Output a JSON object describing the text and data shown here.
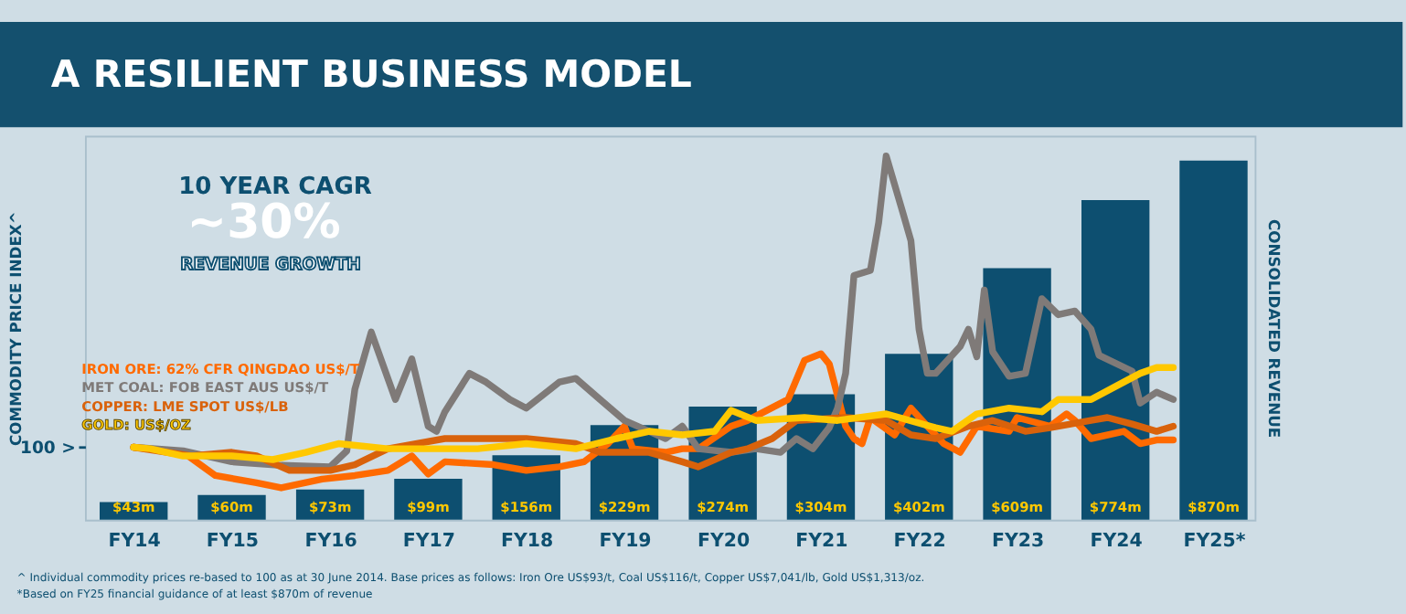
{
  "chart_data": {
    "type": "line",
    "title": "A RESILIENT BUSINESS MODEL",
    "ylabel": "COMMODITY PRICE INDEX^",
    "y2label": "CONSOLIDATED REVENUE",
    "xticks": [
      {
        "value": "2014-07",
        "label": "FY14"
      },
      {
        "value": "2015-07",
        "label": "FY15"
      },
      {
        "value": "2016-07",
        "label": "FY16"
      },
      {
        "value": "2017-07",
        "label": "FY17"
      },
      {
        "value": "2018-07",
        "label": "FY18"
      },
      {
        "value": "2019-07",
        "label": "FY19"
      },
      {
        "value": "2020-07",
        "label": "FY20"
      },
      {
        "value": "2021-07",
        "label": "FY21"
      },
      {
        "value": "2022-07",
        "label": "FY22"
      },
      {
        "value": "2023-07",
        "label": "FY23"
      },
      {
        "value": "2024-07",
        "label": "FY24"
      },
      {
        "value": "2025-07",
        "label": "FY25*"
      }
    ],
    "xlim": [
      "2014-01",
      "2025-12"
    ],
    "ylim": [
      0,
      530
    ],
    "yticks": [
      {
        "value": 100,
        "label": "100 >"
      }
    ],
    "y2lim": [
      0,
      930
    ],
    "legend": "left",
    "series": [
      {
        "type": "bar",
        "axis": "y2",
        "color": "#0d4f70",
        "x": [
          "2014-07",
          "2015-07",
          "2016-07",
          "2017-07",
          "2018-07",
          "2019-07",
          "2020-07",
          "2021-07",
          "2022-07",
          "2023-07",
          "2024-07",
          "2025-07"
        ],
        "values": [
          43,
          60,
          73,
          99,
          156,
          229,
          274,
          304,
          402,
          609,
          774,
          870
        ],
        "value_labels": [
          "$43m",
          "$60m",
          "$73m",
          "$99m",
          "$156m",
          "$229m",
          "$274m",
          "$304m",
          "$402m",
          "$609m",
          "$774m",
          "$870m"
        ]
      },
      {
        "name": "IRON ORE: 62% CFR QINGDAO US$/T",
        "color": "#ff6a00",
        "x": [
          "2014-07",
          "2015-01",
          "2015-05",
          "2015-10",
          "2016-01",
          "2016-06",
          "2016-10",
          "2017-02",
          "2017-05",
          "2017-07",
          "2017-09",
          "2018-03",
          "2018-07",
          "2018-11",
          "2019-02",
          "2019-05",
          "2019-07",
          "2019-08",
          "2019-12",
          "2020-02",
          "2020-04",
          "2020-08",
          "2020-10",
          "2021-03",
          "2021-05",
          "2021-07",
          "2021-08",
          "2021-10",
          "2021-11",
          "2021-12",
          "2022-01",
          "2022-04",
          "2022-06",
          "2022-08",
          "2022-10",
          "2022-12",
          "2023-02",
          "2023-06",
          "2023-07",
          "2023-11",
          "2024-01",
          "2024-02",
          "2024-04",
          "2024-08",
          "2024-10",
          "2024-12",
          "2025-02"
        ],
        "values": [
          100,
          93,
          61,
          51,
          44,
          56,
          61,
          68,
          88,
          63,
          80,
          76,
          68,
          73,
          80,
          105,
          129,
          98,
          93,
          98,
          98,
          129,
          137,
          166,
          220,
          229,
          215,
          129,
          112,
          105,
          141,
          117,
          154,
          129,
          105,
          93,
          129,
          122,
          141,
          129,
          146,
          137,
          112,
          122,
          105,
          110,
          110
        ]
      },
      {
        "name": "MET COAL: FOB EAST AUS US$/T",
        "color": "#7f7a78",
        "x": [
          "2014-07",
          "2015-01",
          "2015-07",
          "2016-01",
          "2016-07",
          "2016-09",
          "2016-10",
          "2016-12",
          "2017-03",
          "2017-05",
          "2017-07",
          "2017-08",
          "2017-09",
          "2017-12",
          "2018-02",
          "2018-05",
          "2018-07",
          "2018-11",
          "2019-01",
          "2019-04",
          "2019-07",
          "2019-10",
          "2019-12",
          "2020-02",
          "2020-04",
          "2020-08",
          "2020-11",
          "2021-02",
          "2021-04",
          "2021-06",
          "2021-08",
          "2021-09",
          "2021-10",
          "2021-11",
          "2022-01",
          "2022-02",
          "2022-03",
          "2022-05",
          "2022-06",
          "2022-07",
          "2022-08",
          "2022-09",
          "2022-12",
          "2023-01",
          "2023-02",
          "2023-03",
          "2023-04",
          "2023-06",
          "2023-08",
          "2023-10",
          "2023-12",
          "2024-02",
          "2024-04",
          "2024-05",
          "2024-09",
          "2024-10",
          "2024-12",
          "2025-02"
        ],
        "values": [
          100,
          95,
          80,
          75,
          73,
          95,
          180,
          259,
          166,
          222,
          129,
          122,
          149,
          202,
          190,
          166,
          154,
          190,
          195,
          166,
          137,
          122,
          112,
          129,
          98,
          93,
          98,
          93,
          112,
          98,
          127,
          154,
          202,
          337,
          344,
          410,
          502,
          425,
          385,
          263,
          202,
          202,
          239,
          263,
          225,
          317,
          232,
          198,
          202,
          305,
          283,
          288,
          263,
          227,
          205,
          161,
          176,
          166
        ]
      },
      {
        "name": "COPPER: LME SPOT US$/LB",
        "color": "#d9620b",
        "x": [
          "2014-07",
          "2015-02",
          "2015-07",
          "2015-10",
          "2016-02",
          "2016-07",
          "2016-10",
          "2017-02",
          "2017-09",
          "2018-01",
          "2018-07",
          "2019-01",
          "2019-04",
          "2019-10",
          "2020-02",
          "2020-04",
          "2020-08",
          "2020-10",
          "2021-01",
          "2021-04",
          "2021-10",
          "2022-03",
          "2022-06",
          "2022-09",
          "2023-01",
          "2023-04",
          "2023-08",
          "2023-11",
          "2024-04",
          "2024-06",
          "2024-09",
          "2024-12",
          "2025-02"
        ],
        "values": [
          100,
          88,
          93,
          88,
          68,
          68,
          76,
          98,
          112,
          112,
          112,
          105,
          93,
          93,
          80,
          73,
          93,
          98,
          112,
          137,
          141,
          137,
          117,
          112,
          129,
          137,
          122,
          127,
          137,
          141,
          132,
          122,
          129
        ]
      },
      {
        "name": "GOLD: US$/OZ",
        "color": "#ffc800",
        "x": [
          "2014-07",
          "2014-09",
          "2015-01",
          "2015-07",
          "2015-12",
          "2016-04",
          "2016-08",
          "2017-02",
          "2017-07",
          "2018-01",
          "2018-07",
          "2019-01",
          "2019-06",
          "2019-10",
          "2020-02",
          "2020-06",
          "2020-08",
          "2020-11",
          "2021-05",
          "2021-09",
          "2022-03",
          "2022-09",
          "2022-11",
          "2023-02",
          "2023-06",
          "2023-10",
          "2023-12",
          "2024-04",
          "2024-08",
          "2024-10",
          "2024-12",
          "2025-02"
        ],
        "values": [
          100,
          98,
          88,
          88,
          83,
          93,
          105,
          98,
          98,
          98,
          105,
          98,
          112,
          122,
          117,
          122,
          151,
          137,
          141,
          137,
          146,
          127,
          122,
          146,
          154,
          149,
          166,
          166,
          190,
          202,
          210,
          210
        ]
      }
    ],
    "annotations": [
      "10 YEAR CAGR",
      "~30%",
      "REVENUE GROWTH",
      "^ Individual commodity prices re-based to 100 as at 30 June 2014. Base prices as follows: Iron Ore US$93/t, Coal US$116/t, Copper US$7,041/lb, Gold US$1,313/oz.",
      "*Based on FY25 financial guidance of at least $870m of revenue"
    ]
  }
}
